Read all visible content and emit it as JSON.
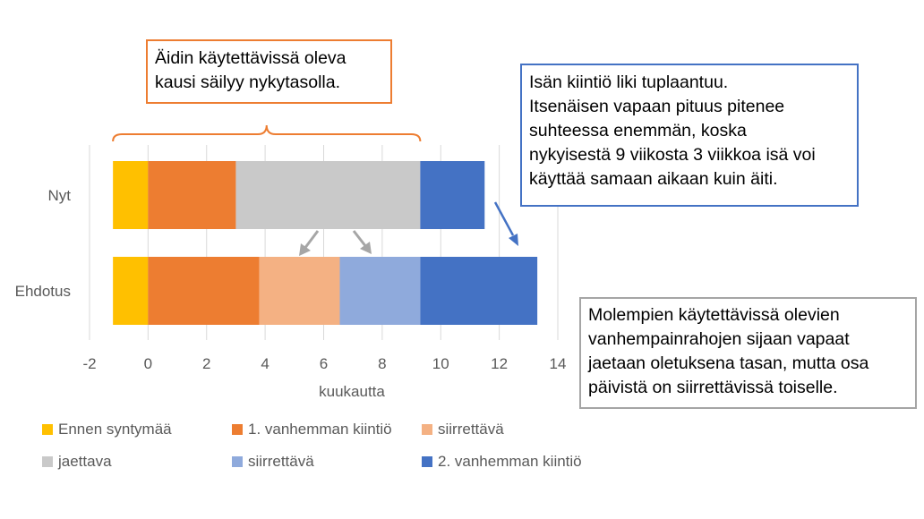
{
  "chart_data": {
    "type": "bar",
    "orientation": "horizontal",
    "stacked": true,
    "categories": [
      "Nyt",
      "Ehdotus"
    ],
    "xlabel": "kuukautta",
    "xlim": [
      -2,
      14
    ],
    "xticks": [
      -2,
      0,
      2,
      4,
      6,
      8,
      10,
      12,
      14
    ],
    "grid": "vertical",
    "legend_position": "bottom",
    "segments": [
      {
        "category": "Nyt",
        "series": "Ennen syntymää",
        "start": -1.2,
        "end": 0,
        "color": "#FFC000"
      },
      {
        "category": "Nyt",
        "series": "1. vanhemman kiintiö",
        "start": 0,
        "end": 3,
        "color": "#ED7D31"
      },
      {
        "category": "Nyt",
        "series": "jaettava",
        "start": 3,
        "end": 9.3,
        "color": "#C9C9C9"
      },
      {
        "category": "Nyt",
        "series": "2. vanhemman kiintiö",
        "start": 9.3,
        "end": 11.5,
        "color": "#4472C4"
      },
      {
        "category": "Ehdotus",
        "series": "Ennen syntymää",
        "start": -1.2,
        "end": 0,
        "color": "#FFC000"
      },
      {
        "category": "Ehdotus",
        "series": "1. vanhemman kiintiö",
        "start": 0,
        "end": 3.8,
        "color": "#ED7D31"
      },
      {
        "category": "Ehdotus",
        "series": "siirrettävä (1)",
        "start": 3.8,
        "end": 6.55,
        "color": "#F4B183"
      },
      {
        "category": "Ehdotus",
        "series": "siirrettävä (2)",
        "start": 6.55,
        "end": 9.3,
        "color": "#8FAADC"
      },
      {
        "category": "Ehdotus",
        "series": "2. vanhemman kiintiö",
        "start": 9.3,
        "end": 13.3,
        "color": "#4472C4"
      }
    ],
    "legend": [
      {
        "label": "Ennen syntymää",
        "color": "#FFC000"
      },
      {
        "label": "1. vanhemman kiintiö",
        "color": "#ED7D31"
      },
      {
        "label": "siirrettävä",
        "color": "#F4B183"
      },
      {
        "label": "jaettava",
        "color": "#C9C9C9"
      },
      {
        "label": "siirrettävä",
        "color": "#8FAADC"
      },
      {
        "label": "2. vanhemman kiintiö",
        "color": "#4472C4"
      }
    ],
    "brace_range": [
      -1.2,
      9.3
    ],
    "annotations": {
      "mother": {
        "lines": [
          "Äidin käytettävissä oleva",
          "kausi säilyy nykytasolla."
        ],
        "border": "#ED7D31"
      },
      "father": {
        "lines": [
          "Isän kiintiö liki tuplaantuu.",
          "Itsenäisen vapaan pituus pitenee",
          "suhteessa enemmän, koska",
          "nykyisestä 9 viikosta 3 viikkoa isä voi",
          "käyttää samaan aikaan kuin äiti."
        ],
        "border": "#4472C4"
      },
      "shared": {
        "lines": [
          "Molempien käytettävissä olevien",
          "vanhempainrahojen sijaan vapaat",
          "jaetaan oletuksena tasan, mutta osa",
          "päivistä on siirrettävissä toiselle."
        ],
        "border": "#A5A5A5"
      }
    }
  }
}
